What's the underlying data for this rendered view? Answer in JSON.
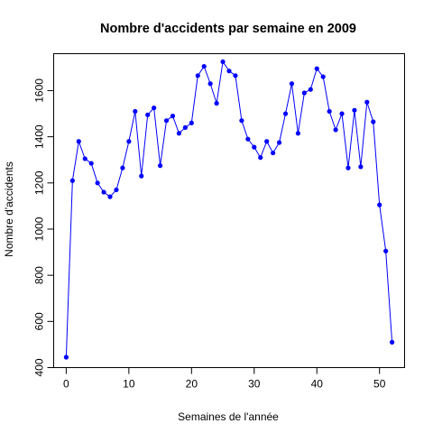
{
  "chart_data": {
    "type": "line",
    "title": "Nombre d'accidents par semaine en 2009",
    "xlabel": "Semaines de l'année",
    "ylabel": "Nombre d'accidents",
    "xlim": [
      -2,
      54
    ],
    "ylim": [
      400,
      1760
    ],
    "x_ticks": [
      0,
      10,
      20,
      30,
      40,
      50
    ],
    "y_ticks": [
      400,
      600,
      800,
      1000,
      1200,
      1400,
      1600
    ],
    "grid": false,
    "series": [
      {
        "color": "#0000ff",
        "x": [
          0,
          1,
          2,
          3,
          4,
          5,
          6,
          7,
          8,
          9,
          10,
          11,
          12,
          13,
          14,
          15,
          16,
          17,
          18,
          19,
          20,
          21,
          22,
          23,
          24,
          25,
          26,
          27,
          28,
          29,
          30,
          31,
          32,
          33,
          34,
          35,
          36,
          37,
          38,
          39,
          40,
          41,
          42,
          43,
          44,
          45,
          46,
          47,
          48,
          49,
          50,
          51,
          52
        ],
        "values": [
          445,
          1210,
          1380,
          1305,
          1285,
          1200,
          1160,
          1140,
          1170,
          1265,
          1380,
          1510,
          1230,
          1495,
          1525,
          1275,
          1470,
          1490,
          1415,
          1440,
          1460,
          1665,
          1705,
          1630,
          1545,
          1725,
          1685,
          1665,
          1470,
          1390,
          1355,
          1310,
          1380,
          1330,
          1375,
          1500,
          1630,
          1415,
          1590,
          1605,
          1695,
          1660,
          1510,
          1430,
          1500,
          1265,
          1515,
          1270,
          1550,
          1465,
          1105,
          905,
          510
        ]
      }
    ]
  }
}
